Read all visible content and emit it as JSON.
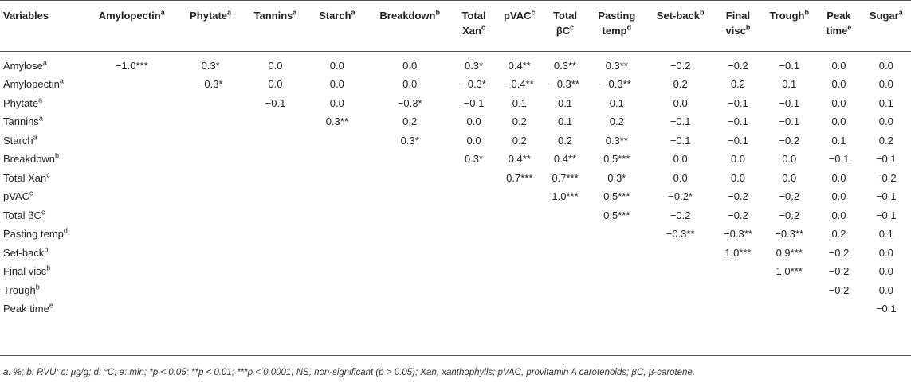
{
  "table": {
    "columns": [
      {
        "text": "Variables",
        "sup": ""
      },
      {
        "text": "Amylopectin",
        "sup": "a"
      },
      {
        "text": "Phytate",
        "sup": "a"
      },
      {
        "text": "Tannins",
        "sup": "a"
      },
      {
        "text": "Starch",
        "sup": "a"
      },
      {
        "text": "Breakdown",
        "sup": "b"
      },
      {
        "text": "Total Xan",
        "sup": "c"
      },
      {
        "text": "pVAC",
        "sup": "c"
      },
      {
        "text": "Total βC",
        "sup": "c"
      },
      {
        "text": "Pasting temp",
        "sup": "d"
      },
      {
        "text": "Set-back",
        "sup": "b"
      },
      {
        "text": "Final visc",
        "sup": "b"
      },
      {
        "text": "Trough",
        "sup": "b"
      },
      {
        "text": "Peak time",
        "sup": "e"
      },
      {
        "text": "Sugar",
        "sup": "a"
      }
    ],
    "rows": [
      {
        "label": "Amylose",
        "sup": "a",
        "cells": [
          "−1.0***",
          "0.3*",
          "0.0",
          "0.0",
          "0.0",
          "0.3*",
          "0.4**",
          "0.3**",
          "0.3**",
          "−0.2",
          "−0.2",
          "−0.1",
          "0.0",
          "0.0"
        ]
      },
      {
        "label": "Amylopectin",
        "sup": "a",
        "cells": [
          "",
          "−0.3*",
          "0.0",
          "0.0",
          "0.0",
          "−0.3*",
          "−0.4**",
          "−0.3**",
          "−0.3**",
          "0.2",
          "0.2",
          "0.1",
          "0.0",
          "0.0"
        ]
      },
      {
        "label": "Phytate",
        "sup": "a",
        "cells": [
          "",
          "",
          "−0.1",
          "0.0",
          "−0.3*",
          "−0.1",
          "0.1",
          "0.1",
          "0.1",
          "0.0",
          "−0.1",
          "−0.1",
          "0.0",
          "0.1"
        ]
      },
      {
        "label": "Tannins",
        "sup": "a",
        "cells": [
          "",
          "",
          "",
          "0.3**",
          "0.2",
          "0.0",
          "0.2",
          "0.1",
          "0.2",
          "−0.1",
          "−0.1",
          "−0.1",
          "0.0",
          "0.0"
        ]
      },
      {
        "label": "Starch",
        "sup": "a",
        "cells": [
          "",
          "",
          "",
          "",
          "0.3*",
          "0.0",
          "0.2",
          "0.2",
          "0.3**",
          "−0.1",
          "−0.1",
          "−0.2",
          "0.1",
          "0.2"
        ]
      },
      {
        "label": "Breakdown",
        "sup": "b",
        "cells": [
          "",
          "",
          "",
          "",
          "",
          "0.3*",
          "0.4**",
          "0.4**",
          "0.5***",
          "0.0",
          "0.0",
          "0.0",
          "−0.1",
          "−0.1"
        ]
      },
      {
        "label": "Total Xan",
        "sup": "c",
        "cells": [
          "",
          "",
          "",
          "",
          "",
          "",
          "0.7***",
          "0.7***",
          "0.3*",
          "0.0",
          "0.0",
          "0.0",
          "0.0",
          "−0.2"
        ]
      },
      {
        "label": "pVAC",
        "sup": "c",
        "cells": [
          "",
          "",
          "",
          "",
          "",
          "",
          "",
          "1.0***",
          "0.5***",
          "−0.2*",
          "−0.2",
          "−0.2",
          "0.0",
          "−0.1"
        ]
      },
      {
        "label": "Total βC",
        "sup": "c",
        "cells": [
          "",
          "",
          "",
          "",
          "",
          "",
          "",
          "",
          "0.5***",
          "−0.2",
          "−0.2",
          "−0.2",
          "0.0",
          "−0.1"
        ]
      },
      {
        "label": "Pasting temp",
        "sup": "d",
        "cells": [
          "",
          "",
          "",
          "",
          "",
          "",
          "",
          "",
          "",
          "−0.3**",
          "−0.3**",
          "−0.3**",
          "0.2",
          "0.1"
        ]
      },
      {
        "label": "Set-back",
        "sup": "b",
        "cells": [
          "",
          "",
          "",
          "",
          "",
          "",
          "",
          "",
          "",
          "",
          "1.0***",
          "0.9***",
          "−0.2",
          "0.0"
        ]
      },
      {
        "label": "Final visc",
        "sup": "b",
        "cells": [
          "",
          "",
          "",
          "",
          "",
          "",
          "",
          "",
          "",
          "",
          "",
          "1.0***",
          "−0.2",
          "0.0"
        ]
      },
      {
        "label": "Trough",
        "sup": "b",
        "cells": [
          "",
          "",
          "",
          "",
          "",
          "",
          "",
          "",
          "",
          "",
          "",
          "",
          "−0.2",
          "0.0"
        ]
      },
      {
        "label": "Peak time",
        "sup": "e",
        "cells": [
          "",
          "",
          "",
          "",
          "",
          "",
          "",
          "",
          "",
          "",
          "",
          "",
          "",
          "−0.1"
        ]
      }
    ],
    "footnote": "a: %; b: RVU; c: μg/g; d: °C; e: min; *p < 0.05; **p < 0.01; ***p < 0.0001; NS, non-significant (p > 0.05); Xan, xanthophylls; pVAC, provitamin A carotenoids; βC, β-carotene."
  }
}
